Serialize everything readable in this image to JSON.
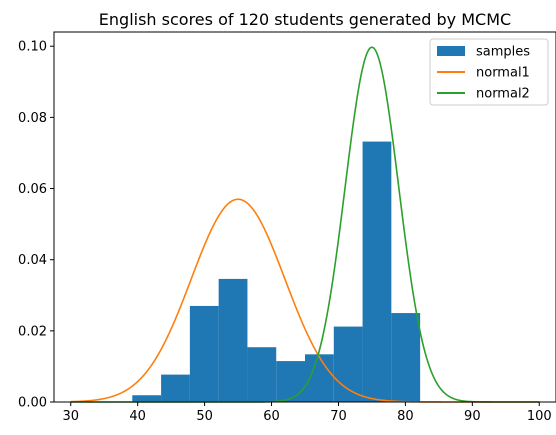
{
  "chart_data": {
    "type": "histogram",
    "title": "English scores of 120 students generated by MCMC",
    "xlabel": "",
    "ylabel": "",
    "xlim": [
      27.5,
      102.5
    ],
    "ylim": [
      0,
      0.104
    ],
    "xticks": [
      "30",
      "40",
      "50",
      "60",
      "70",
      "80",
      "90",
      "100"
    ],
    "xtick_values": [
      30,
      40,
      50,
      60,
      70,
      80,
      90,
      100
    ],
    "yticks": [
      "0.00",
      "0.02",
      "0.04",
      "0.06",
      "0.08",
      "0.10"
    ],
    "ytick_values": [
      0,
      0.02,
      0.04,
      0.06,
      0.08,
      0.1
    ],
    "grid": false,
    "legend_position": "top-right",
    "histogram": {
      "name": "samples",
      "color": "#1f77b4",
      "bins": [
        {
          "x0": 39.2,
          "x1": 43.5,
          "density": 0.0019
        },
        {
          "x0": 43.5,
          "x1": 47.8,
          "density": 0.0077
        },
        {
          "x0": 47.8,
          "x1": 52.1,
          "density": 0.027
        },
        {
          "x0": 52.1,
          "x1": 56.4,
          "density": 0.0346
        },
        {
          "x0": 56.4,
          "x1": 60.7,
          "density": 0.0154
        },
        {
          "x0": 60.7,
          "x1": 65.0,
          "density": 0.0115
        },
        {
          "x0": 65.0,
          "x1": 69.3,
          "density": 0.0134
        },
        {
          "x0": 69.3,
          "x1": 73.6,
          "density": 0.0212
        },
        {
          "x0": 73.6,
          "x1": 77.9,
          "density": 0.0732
        },
        {
          "x0": 77.9,
          "x1": 82.2,
          "density": 0.025
        }
      ]
    },
    "series": [
      {
        "name": "normal1",
        "color": "#ff7f0e",
        "mean": 55,
        "std": 7,
        "x_range": [
          30,
          100
        ]
      },
      {
        "name": "normal2",
        "color": "#2ca02c",
        "mean": 75,
        "std": 4,
        "x_range": [
          30,
          100
        ]
      }
    ]
  }
}
